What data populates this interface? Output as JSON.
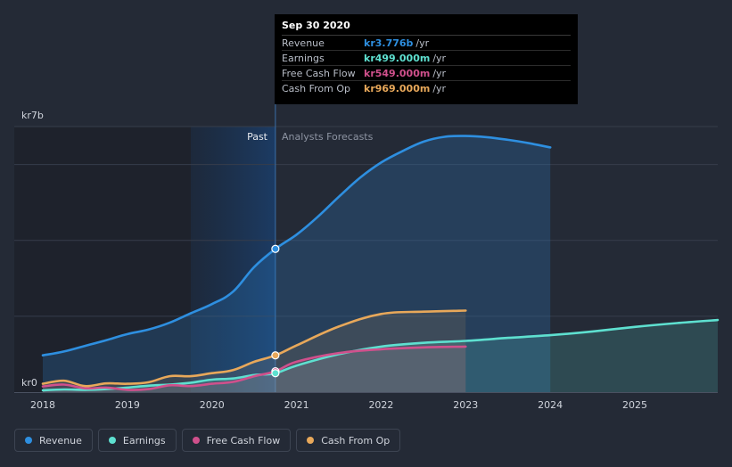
{
  "tooltip": {
    "date": "Sep 30 2020",
    "rows": [
      {
        "label": "Revenue",
        "value": "kr3.776b",
        "unit": "/yr",
        "color": "#2e8fe0"
      },
      {
        "label": "Earnings",
        "value": "kr499.000m",
        "unit": "/yr",
        "color": "#5ee0d0"
      },
      {
        "label": "Free Cash Flow",
        "value": "kr549.000m",
        "unit": "/yr",
        "color": "#d0508c"
      },
      {
        "label": "Cash From Op",
        "value": "kr969.000m",
        "unit": "/yr",
        "color": "#e8a85a"
      }
    ]
  },
  "legend": [
    {
      "label": "Revenue",
      "color": "#2e8fe0"
    },
    {
      "label": "Earnings",
      "color": "#5ee0d0"
    },
    {
      "label": "Free Cash Flow",
      "color": "#d0508c"
    },
    {
      "label": "Cash From Op",
      "color": "#e8a85a"
    }
  ],
  "chart_data": {
    "type": "line",
    "y_unit": "kr billions",
    "ylim": [
      0,
      7
    ],
    "y_tick_labels": [
      {
        "value": 7,
        "label": "kr7b"
      },
      {
        "value": 0,
        "label": "kr0"
      }
    ],
    "xlim": [
      2018.0,
      2025.98
    ],
    "x_ticks": [
      2018,
      2019,
      2020,
      2021,
      2022,
      2023,
      2024,
      2025
    ],
    "past_label": "Past",
    "forecast_label": "Analysts Forecasts",
    "divider_x": 2020.75,
    "shade_start_x": 2019.75,
    "colors": {
      "Revenue": "#2e8fe0",
      "Earnings": "#5ee0d0",
      "Free Cash Flow": "#d0508c",
      "Cash From Op": "#e8a85a"
    },
    "series": [
      {
        "name": "Revenue",
        "points": [
          [
            2018.0,
            0.97
          ],
          [
            2018.25,
            1.07
          ],
          [
            2018.5,
            1.22
          ],
          [
            2018.75,
            1.37
          ],
          [
            2019.0,
            1.53
          ],
          [
            2019.25,
            1.65
          ],
          [
            2019.5,
            1.83
          ],
          [
            2019.75,
            2.08
          ],
          [
            2020.0,
            2.32
          ],
          [
            2020.25,
            2.65
          ],
          [
            2020.5,
            3.3
          ],
          [
            2020.75,
            3.776
          ],
          [
            2021.0,
            4.15
          ],
          [
            2021.25,
            4.62
          ],
          [
            2021.5,
            5.15
          ],
          [
            2021.75,
            5.65
          ],
          [
            2022.0,
            6.05
          ],
          [
            2022.25,
            6.35
          ],
          [
            2022.5,
            6.6
          ],
          [
            2022.75,
            6.73
          ],
          [
            2023.0,
            6.75
          ],
          [
            2023.25,
            6.72
          ],
          [
            2023.5,
            6.65
          ],
          [
            2023.75,
            6.56
          ],
          [
            2024.0,
            6.45
          ]
        ]
      },
      {
        "name": "Earnings",
        "points": [
          [
            2018.0,
            0.05
          ],
          [
            2018.25,
            0.07
          ],
          [
            2018.5,
            0.06
          ],
          [
            2018.75,
            0.08
          ],
          [
            2019.0,
            0.12
          ],
          [
            2019.25,
            0.17
          ],
          [
            2019.5,
            0.2
          ],
          [
            2019.75,
            0.25
          ],
          [
            2020.0,
            0.33
          ],
          [
            2020.25,
            0.36
          ],
          [
            2020.5,
            0.45
          ],
          [
            2020.75,
            0.499
          ],
          [
            2021.0,
            0.7
          ],
          [
            2021.5,
            1.0
          ],
          [
            2022.0,
            1.2
          ],
          [
            2022.5,
            1.3
          ],
          [
            2023.0,
            1.35
          ],
          [
            2023.5,
            1.43
          ],
          [
            2024.0,
            1.5
          ],
          [
            2024.5,
            1.6
          ],
          [
            2025.0,
            1.72
          ],
          [
            2025.5,
            1.82
          ],
          [
            2025.98,
            1.9
          ]
        ]
      },
      {
        "name": "Free Cash Flow",
        "points": [
          [
            2018.0,
            0.15
          ],
          [
            2018.25,
            0.2
          ],
          [
            2018.5,
            0.1
          ],
          [
            2018.75,
            0.12
          ],
          [
            2019.0,
            0.06
          ],
          [
            2019.25,
            0.08
          ],
          [
            2019.5,
            0.18
          ],
          [
            2019.75,
            0.16
          ],
          [
            2020.0,
            0.22
          ],
          [
            2020.25,
            0.27
          ],
          [
            2020.5,
            0.42
          ],
          [
            2020.75,
            0.549
          ],
          [
            2021.0,
            0.8
          ],
          [
            2021.5,
            1.03
          ],
          [
            2022.0,
            1.13
          ],
          [
            2022.5,
            1.18
          ],
          [
            2023.0,
            1.2
          ]
        ]
      },
      {
        "name": "Cash From Op",
        "points": [
          [
            2018.0,
            0.22
          ],
          [
            2018.25,
            0.3
          ],
          [
            2018.5,
            0.16
          ],
          [
            2018.75,
            0.23
          ],
          [
            2019.0,
            0.22
          ],
          [
            2019.25,
            0.26
          ],
          [
            2019.5,
            0.42
          ],
          [
            2019.75,
            0.42
          ],
          [
            2020.0,
            0.5
          ],
          [
            2020.25,
            0.58
          ],
          [
            2020.5,
            0.8
          ],
          [
            2020.75,
            0.969
          ],
          [
            2021.0,
            1.23
          ],
          [
            2021.5,
            1.73
          ],
          [
            2022.0,
            2.06
          ],
          [
            2022.5,
            2.12
          ],
          [
            2023.0,
            2.15
          ]
        ]
      }
    ],
    "highlight_points": [
      {
        "series": "Revenue",
        "x": 2020.75,
        "y": 3.776
      },
      {
        "series": "Cash From Op",
        "x": 2020.75,
        "y": 0.969
      },
      {
        "series": "Free Cash Flow",
        "x": 2020.75,
        "y": 0.549
      },
      {
        "series": "Earnings",
        "x": 2020.75,
        "y": 0.499
      }
    ]
  }
}
